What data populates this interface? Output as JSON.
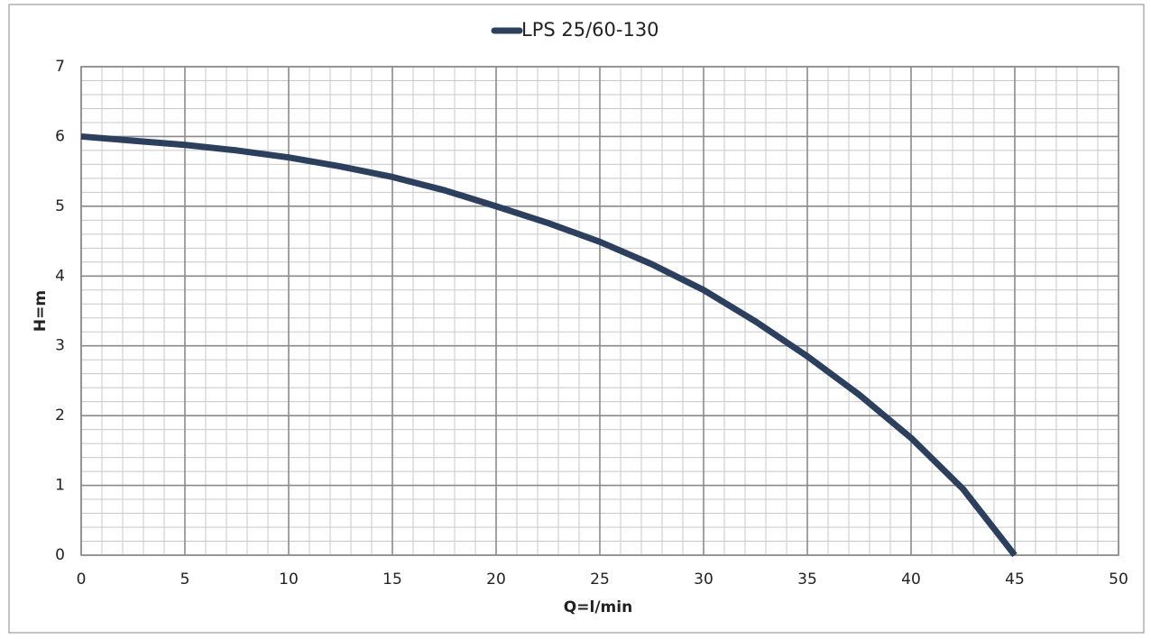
{
  "chart_data": {
    "type": "line",
    "x": [
      0,
      2.5,
      5,
      7.5,
      10,
      12.5,
      15,
      17.5,
      20,
      22.5,
      25,
      27.5,
      30,
      32.5,
      35,
      37.5,
      40,
      42.5,
      45
    ],
    "series": [
      {
        "name": "LPS 25/60-130",
        "color": "#2b3f5f",
        "values": [
          6.0,
          5.94,
          5.88,
          5.8,
          5.7,
          5.57,
          5.42,
          5.23,
          5.0,
          4.76,
          4.49,
          4.17,
          3.8,
          3.35,
          2.85,
          2.3,
          1.68,
          0.95,
          0.0
        ]
      }
    ],
    "x_label": "Q=l/min",
    "y_label": "H=m",
    "xlim": [
      0,
      50
    ],
    "xticks": [
      0,
      5,
      10,
      15,
      20,
      25,
      30,
      35,
      40,
      45,
      50
    ],
    "ylim": [
      0,
      7
    ],
    "yticks": [
      0,
      1,
      2,
      3,
      4,
      5,
      6,
      7
    ],
    "grid": true,
    "minor_grid_step": {
      "x": 1,
      "y": 0.2
    },
    "legend": "top"
  }
}
